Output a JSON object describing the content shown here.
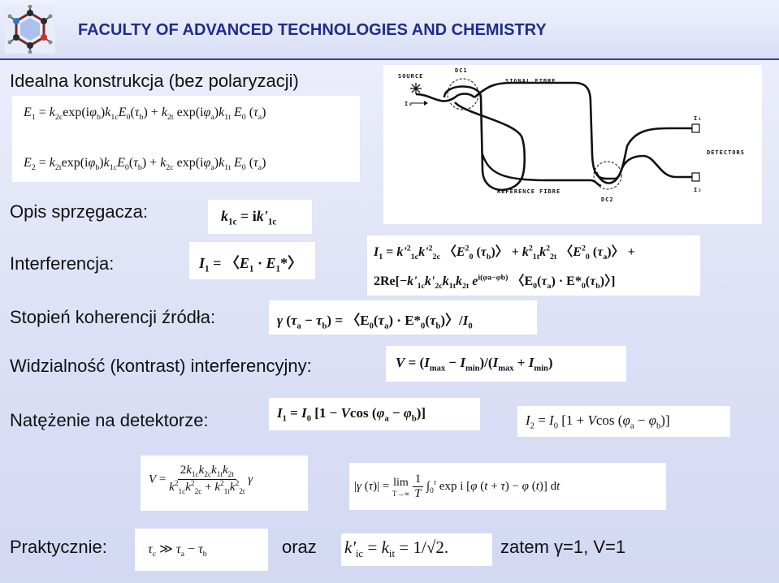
{
  "header": {
    "organization": "FACULTY OF ADVANCED TECHNOLOGIES AND CHEMISTRY",
    "brand_color": "#1f2d8a",
    "logo_icon": "molecule-logo-icon"
  },
  "section_title": "Idealna konstrukcja (bez polaryzacji)",
  "labels": {
    "coupler": "Opis sprzęgacza:",
    "interference": "Interferencja:",
    "coherence": "Stopień koherencji źródła:",
    "visibility": "Widzialność (kontrast) interferencyjny:",
    "intensity": "Natężenie na detektorze:",
    "practically": "Praktycznie:",
    "and": "oraz",
    "then": "zatem γ=1, V=1"
  },
  "diagram": {
    "source": "SOURCE",
    "i0": "I₀",
    "dc1": "DC1",
    "signal_fibre": "SIGNAL FIBRE",
    "reference_fibre": "REFERENCE FIBRE",
    "dc2": "DC2",
    "i1": "I₁",
    "i2": "I₂",
    "detectors": "DETECTORS"
  }
}
